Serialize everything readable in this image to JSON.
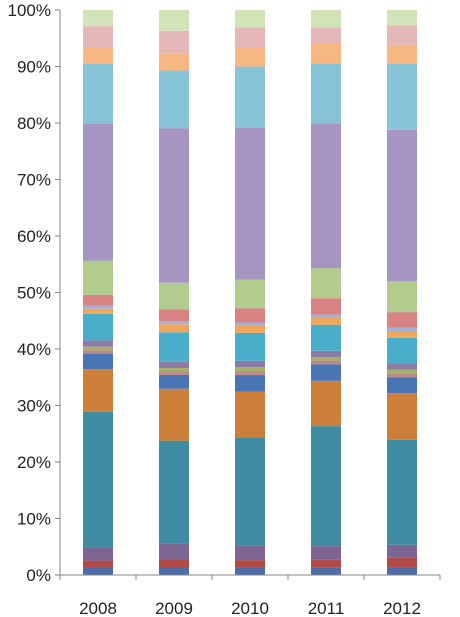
{
  "chart_data": {
    "type": "bar",
    "stacked": true,
    "normalized_percent": true,
    "categories": [
      "2008",
      "2009",
      "2010",
      "2011",
      "2012"
    ],
    "ylim": [
      0,
      100
    ],
    "yticks": [
      "0%",
      "10%",
      "20%",
      "30%",
      "40%",
      "50%",
      "60%",
      "70%",
      "80%",
      "90%",
      "100%"
    ],
    "ytick_values": [
      0,
      10,
      20,
      30,
      40,
      50,
      60,
      70,
      80,
      90,
      100
    ],
    "grid": false,
    "legend": "none",
    "series": [
      {
        "color": "#4f6ea9",
        "values": [
          1.3,
          1.3,
          1.3,
          1.3,
          1.3
        ]
      },
      {
        "color": "#b04a47",
        "values": [
          1.2,
          1.4,
          1.3,
          1.4,
          1.7
        ]
      },
      {
        "color": "#7c6592",
        "values": [
          2.2,
          2.8,
          2.5,
          2.4,
          2.3
        ]
      },
      {
        "color": "#3e8ba2",
        "values": [
          23.6,
          17.8,
          19.0,
          21.2,
          18.4
        ]
      },
      {
        "color": "#cc7f39",
        "values": [
          7.4,
          9.0,
          8.0,
          8.0,
          8.2
        ]
      },
      {
        "color": "#4a75b5",
        "values": [
          2.7,
          2.4,
          2.9,
          2.9,
          2.8
        ]
      },
      {
        "color": "#b98b8b",
        "values": [
          0.6,
          0.6,
          0.7,
          0.7,
          0.7
        ]
      },
      {
        "color": "#a7b165",
        "values": [
          0.6,
          0.6,
          0.7,
          0.6,
          0.6
        ]
      },
      {
        "color": "#8a7ca5",
        "values": [
          1.1,
          1.1,
          1.1,
          1.1,
          1.1
        ]
      },
      {
        "color": "#4aaecb",
        "values": [
          4.6,
          5.1,
          4.9,
          4.6,
          4.5
        ]
      },
      {
        "color": "#f1a65a",
        "values": [
          0.9,
          1.4,
          1.2,
          1.2,
          1.2
        ]
      },
      {
        "color": "#9fb1d8",
        "values": [
          0.5,
          0.5,
          0.6,
          0.6,
          0.6
        ]
      },
      {
        "color": "#d98283",
        "values": [
          1.9,
          2.1,
          2.5,
          2.9,
          2.7
        ]
      },
      {
        "color": "#b1cc8c",
        "values": [
          5.9,
          4.6,
          5.0,
          5.3,
          5.4
        ]
      },
      {
        "color": "#a595c0",
        "values": [
          23.8,
          26.8,
          26.6,
          25.6,
          26.6
        ]
      },
      {
        "color": "#88c4d8",
        "values": [
          10.4,
          10.0,
          10.7,
          10.6,
          11.6
        ]
      },
      {
        "color": "#f7b783",
        "values": [
          2.7,
          3.0,
          3.4,
          3.4,
          3.3
        ]
      },
      {
        "color": "#e4b7b9",
        "values": [
          3.8,
          3.9,
          3.5,
          2.9,
          3.4
        ]
      },
      {
        "color": "#d2e3b8",
        "values": [
          2.8,
          3.6,
          3.0,
          3.1,
          2.7
        ]
      }
    ]
  }
}
